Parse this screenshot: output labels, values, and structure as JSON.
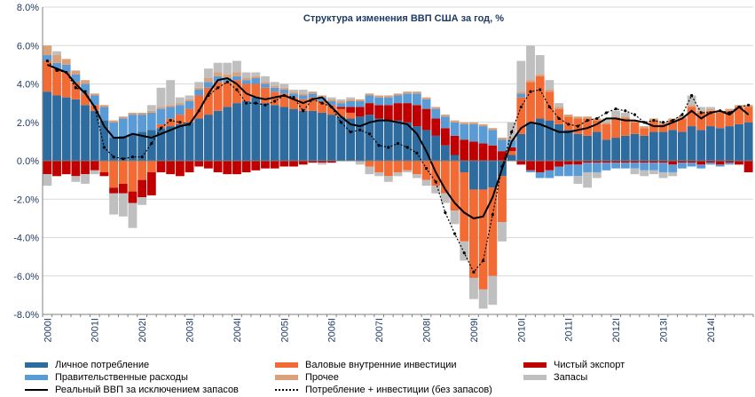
{
  "chart_data": {
    "type": "bar",
    "title": "Структура изменения ВВП США за год, %",
    "xlabel": "",
    "ylabel": "",
    "ylim": [
      -8,
      8
    ],
    "yticks": [
      "8.0%",
      "6.0%",
      "4.0%",
      "2.0%",
      "0.0%",
      "-2.0%",
      "-4.0%",
      "-6.0%",
      "-8.0%"
    ],
    "ytick_values": [
      8,
      6,
      4,
      2,
      0,
      -2,
      -4,
      -6,
      -8
    ],
    "grid": true,
    "legend_position": "bottom",
    "x_tick_labels": [
      "2000I",
      "2001I",
      "2002I",
      "2003I",
      "2004I",
      "2005I",
      "2006I",
      "2007I",
      "2008I",
      "2009I",
      "2010I",
      "2011I",
      "2012I",
      "2013I",
      "2014I"
    ],
    "series": [
      {
        "name": "Личное потребление",
        "color": "#2e6b9e",
        "kind": "bar",
        "values": [
          3.6,
          3.4,
          3.3,
          3.2,
          2.9,
          2.6,
          2.1,
          1.2,
          1.3,
          1.4,
          1.5,
          1.6,
          1.7,
          1.8,
          1.9,
          2.0,
          2.2,
          2.4,
          2.6,
          2.8,
          3.0,
          3.1,
          3.3,
          3.0,
          2.9,
          2.8,
          2.7,
          2.6,
          2.6,
          2.5,
          2.4,
          2.3,
          2.2,
          2.3,
          2.4,
          2.2,
          2.1,
          2.1,
          2.0,
          1.8,
          1.6,
          1.3,
          0.8,
          0.3,
          -0.6,
          -1.5,
          -1.5,
          -1.4,
          -0.8,
          0.3,
          1.4,
          2.0,
          2.2,
          2.1,
          1.9,
          1.6,
          1.4,
          1.3,
          1.5,
          1.1,
          1.2,
          1.3,
          1.4,
          1.3,
          1.5,
          1.5,
          1.6,
          1.5,
          1.8,
          1.6,
          1.8,
          1.7,
          1.8,
          1.9,
          2.0
        ]
      },
      {
        "name": "Валовые внутренние инвестиции",
        "color": "#f26b35",
        "kind": "bar",
        "values": [
          1.6,
          1.4,
          1.3,
          0.9,
          0.6,
          0.3,
          -0.6,
          -1.4,
          -1.2,
          -1.6,
          -1.0,
          -0.6,
          0.2,
          0.4,
          0.5,
          0.7,
          1.2,
          1.4,
          1.5,
          1.3,
          1.2,
          0.9,
          0.7,
          0.8,
          0.7,
          0.7,
          0.6,
          0.6,
          0.7,
          0.6,
          0.5,
          0.4,
          0.3,
          0.0,
          -0.3,
          -0.6,
          -0.8,
          -0.6,
          -0.5,
          -0.7,
          -1.0,
          -1.3,
          -1.7,
          -2.6,
          -3.6,
          -4.6,
          -5.2,
          -4.6,
          -2.4,
          0.2,
          1.9,
          2.1,
          2.2,
          1.5,
          0.8,
          0.7,
          0.8,
          0.9,
          0.6,
          0.8,
          1.0,
          0.9,
          0.6,
          0.4,
          0.6,
          0.4,
          0.5,
          0.7,
          1.0,
          0.9,
          0.8,
          0.8,
          0.8,
          0.9,
          0.8
        ]
      },
      {
        "name": "Чистый экспорт",
        "color": "#c00000",
        "kind": "bar",
        "values": [
          -0.7,
          -0.8,
          -0.7,
          -0.8,
          -0.7,
          -0.5,
          -0.2,
          -0.3,
          -0.5,
          -0.6,
          -0.9,
          -1.2,
          -0.6,
          -0.7,
          -0.8,
          -0.6,
          -0.3,
          -0.4,
          -0.6,
          -0.7,
          -0.7,
          -0.6,
          -0.5,
          -0.4,
          -0.4,
          -0.3,
          -0.3,
          -0.2,
          -0.1,
          -0.1,
          -0.1,
          0.1,
          0.3,
          0.5,
          0.6,
          0.7,
          0.8,
          0.9,
          1.0,
          1.1,
          1.1,
          0.9,
          0.9,
          1.0,
          1.1,
          1.0,
          0.9,
          0.8,
          0.5,
          0.2,
          -0.2,
          -0.5,
          -0.6,
          -0.5,
          -0.3,
          -0.2,
          -0.2,
          -0.1,
          -0.1,
          -0.1,
          -0.1,
          -0.1,
          -0.1,
          -0.1,
          -0.1,
          -0.1,
          -0.2,
          -0.1,
          -0.1,
          -0.2,
          -0.1,
          -0.2,
          -0.1,
          -0.2,
          -0.6
        ]
      },
      {
        "name": "Правительственные расходы",
        "color": "#5b9bd5",
        "kind": "bar",
        "values": [
          0.3,
          0.3,
          0.4,
          0.4,
          0.5,
          0.5,
          0.7,
          0.8,
          0.9,
          1.0,
          0.9,
          0.9,
          0.8,
          0.6,
          0.5,
          0.4,
          0.3,
          0.3,
          0.3,
          0.2,
          0.2,
          0.2,
          0.3,
          0.2,
          0.2,
          0.2,
          0.2,
          0.2,
          0.2,
          0.2,
          0.2,
          0.2,
          0.3,
          0.3,
          0.4,
          0.4,
          0.4,
          0.4,
          0.5,
          0.6,
          0.5,
          0.5,
          0.6,
          0.7,
          0.8,
          0.9,
          0.9,
          0.8,
          0.6,
          0.4,
          0.2,
          -0.1,
          -0.3,
          -0.4,
          -0.5,
          -0.6,
          -0.6,
          -0.5,
          -0.5,
          -0.4,
          -0.3,
          -0.3,
          -0.3,
          -0.4,
          -0.4,
          -0.5,
          -0.4,
          -0.3,
          -0.2,
          -0.2,
          -0.1,
          -0.1,
          -0.1,
          0.0,
          0.0
        ]
      },
      {
        "name": "Прочее",
        "color": "#d9a07a",
        "kind": "bar",
        "values": [
          0.5,
          0.4,
          0.3,
          0.2,
          0.2,
          0.1,
          0.1,
          0.1,
          0.1,
          0.1,
          0.1,
          0.1,
          0.1,
          0.1,
          0.1,
          0.1,
          0.1,
          0.2,
          0.2,
          0.2,
          0.2,
          0.1,
          0.1,
          0.1,
          0.1,
          0.1,
          0.1,
          0.1,
          0.1,
          0.1,
          0.1,
          0.1,
          0.1,
          0.1,
          0.1,
          0.1,
          0.1,
          0.1,
          0.1,
          0.1,
          0.1,
          0.1,
          0.1,
          0.1,
          0.1,
          0.1,
          0.1,
          0.1,
          0.1,
          0.1,
          0.1,
          0.1,
          0.1,
          0.1,
          0.1,
          0.1,
          0.1,
          0.1,
          0.1,
          0.1,
          0.1,
          0.1,
          0.1,
          0.1,
          0.1,
          0.1,
          0.1,
          0.1,
          0.1,
          0.1,
          0.1,
          0.1,
          0.1,
          0.1,
          0.1
        ]
      },
      {
        "name": "Запасы",
        "color": "#bfbfbf",
        "kind": "bar",
        "values": [
          -0.6,
          0.2,
          0.0,
          -0.3,
          -0.5,
          -0.2,
          0.0,
          -1.1,
          -1.2,
          -1.3,
          -0.4,
          0.3,
          1.0,
          1.3,
          0.3,
          0.2,
          0.3,
          0.5,
          0.5,
          0.6,
          0.6,
          0.3,
          0.2,
          0.3,
          0.2,
          0.2,
          0.1,
          0.2,
          0.0,
          -0.1,
          0.1,
          0.1,
          0.1,
          -0.2,
          -0.4,
          -0.2,
          -0.3,
          -0.2,
          -0.1,
          -0.2,
          -0.3,
          -0.4,
          -0.5,
          -0.7,
          -1.0,
          -1.1,
          -1.0,
          -1.5,
          -1.0,
          0.8,
          1.6,
          1.8,
          1.0,
          0.5,
          0.2,
          0.0,
          -0.4,
          -0.8,
          -0.3,
          0.2,
          0.3,
          0.2,
          -0.3,
          -0.3,
          -0.2,
          -0.3,
          -0.2,
          0.0,
          0.5,
          0.2,
          0.1,
          0.0,
          0.0,
          0.0,
          0.0
        ]
      },
      {
        "name": "Реальный ВВП за исключением запасов",
        "color": "#000000",
        "kind": "line",
        "values": [
          5.0,
          4.8,
          4.6,
          4.0,
          3.5,
          2.8,
          1.8,
          1.2,
          1.2,
          1.4,
          1.3,
          1.2,
          1.4,
          1.6,
          1.8,
          1.9,
          2.6,
          3.5,
          4.2,
          4.3,
          4.0,
          3.5,
          3.3,
          3.2,
          3.3,
          3.4,
          3.2,
          3.0,
          3.2,
          3.3,
          2.8,
          2.3,
          1.9,
          1.8,
          2.0,
          2.1,
          2.1,
          2.0,
          1.9,
          1.4,
          0.5,
          -0.6,
          -1.5,
          -2.2,
          -2.7,
          -3.0,
          -2.9,
          -1.9,
          -0.4,
          1.0,
          1.7,
          2.0,
          1.9,
          1.7,
          1.5,
          1.5,
          1.6,
          1.7,
          1.9,
          2.2,
          2.2,
          2.1,
          2.1,
          2.0,
          1.8,
          1.8,
          2.0,
          2.2,
          2.6,
          2.2,
          2.5,
          2.6,
          2.4,
          2.8,
          2.4
        ]
      },
      {
        "name": "Потребление + инвестиции (без запасов)",
        "color": "#000000",
        "kind": "dotted",
        "values": [
          5.2,
          4.7,
          4.6,
          3.8,
          3.6,
          2.8,
          0.7,
          0.2,
          0.1,
          0.2,
          0.2,
          0.9,
          1.7,
          2.1,
          2.0,
          1.9,
          2.6,
          3.4,
          3.8,
          4.1,
          3.7,
          3.0,
          3.0,
          2.9,
          3.1,
          3.4,
          3.3,
          2.6,
          3.2,
          3.0,
          2.8,
          2.0,
          1.5,
          1.6,
          1.4,
          0.8,
          0.7,
          0.9,
          0.7,
          0.4,
          -0.4,
          -1.1,
          -2.7,
          -3.8,
          -4.8,
          -5.8,
          -5.2,
          -2.8,
          -0.3,
          1.5,
          2.8,
          3.6,
          3.7,
          2.8,
          2.2,
          1.9,
          1.8,
          2.1,
          2.2,
          2.5,
          2.7,
          2.6,
          2.4,
          2.0,
          2.1,
          2.0,
          2.1,
          2.4,
          3.4,
          2.5,
          2.5,
          2.6,
          2.5,
          2.8,
          2.9
        ]
      }
    ]
  },
  "legend": {
    "items": [
      {
        "label": "Личное потребление",
        "color": "#2e6b9e",
        "kind": "swatch"
      },
      {
        "label": "Валовые внутренние инвестиции",
        "color": "#f26b35",
        "kind": "swatch"
      },
      {
        "label": "Чистый экспорт",
        "color": "#c00000",
        "kind": "swatch"
      },
      {
        "label": "Правительственные расходы",
        "color": "#5b9bd5",
        "kind": "swatch"
      },
      {
        "label": "Прочее",
        "color": "#d9a07a",
        "kind": "swatch"
      },
      {
        "label": "Запасы",
        "color": "#bfbfbf",
        "kind": "swatch"
      },
      {
        "label": "Реальный ВВП за исключением запасов",
        "color": "#000000",
        "kind": "line"
      },
      {
        "label": "Потребление + инвестиции (без запасов)",
        "color": "#000000",
        "kind": "dotted"
      }
    ]
  }
}
